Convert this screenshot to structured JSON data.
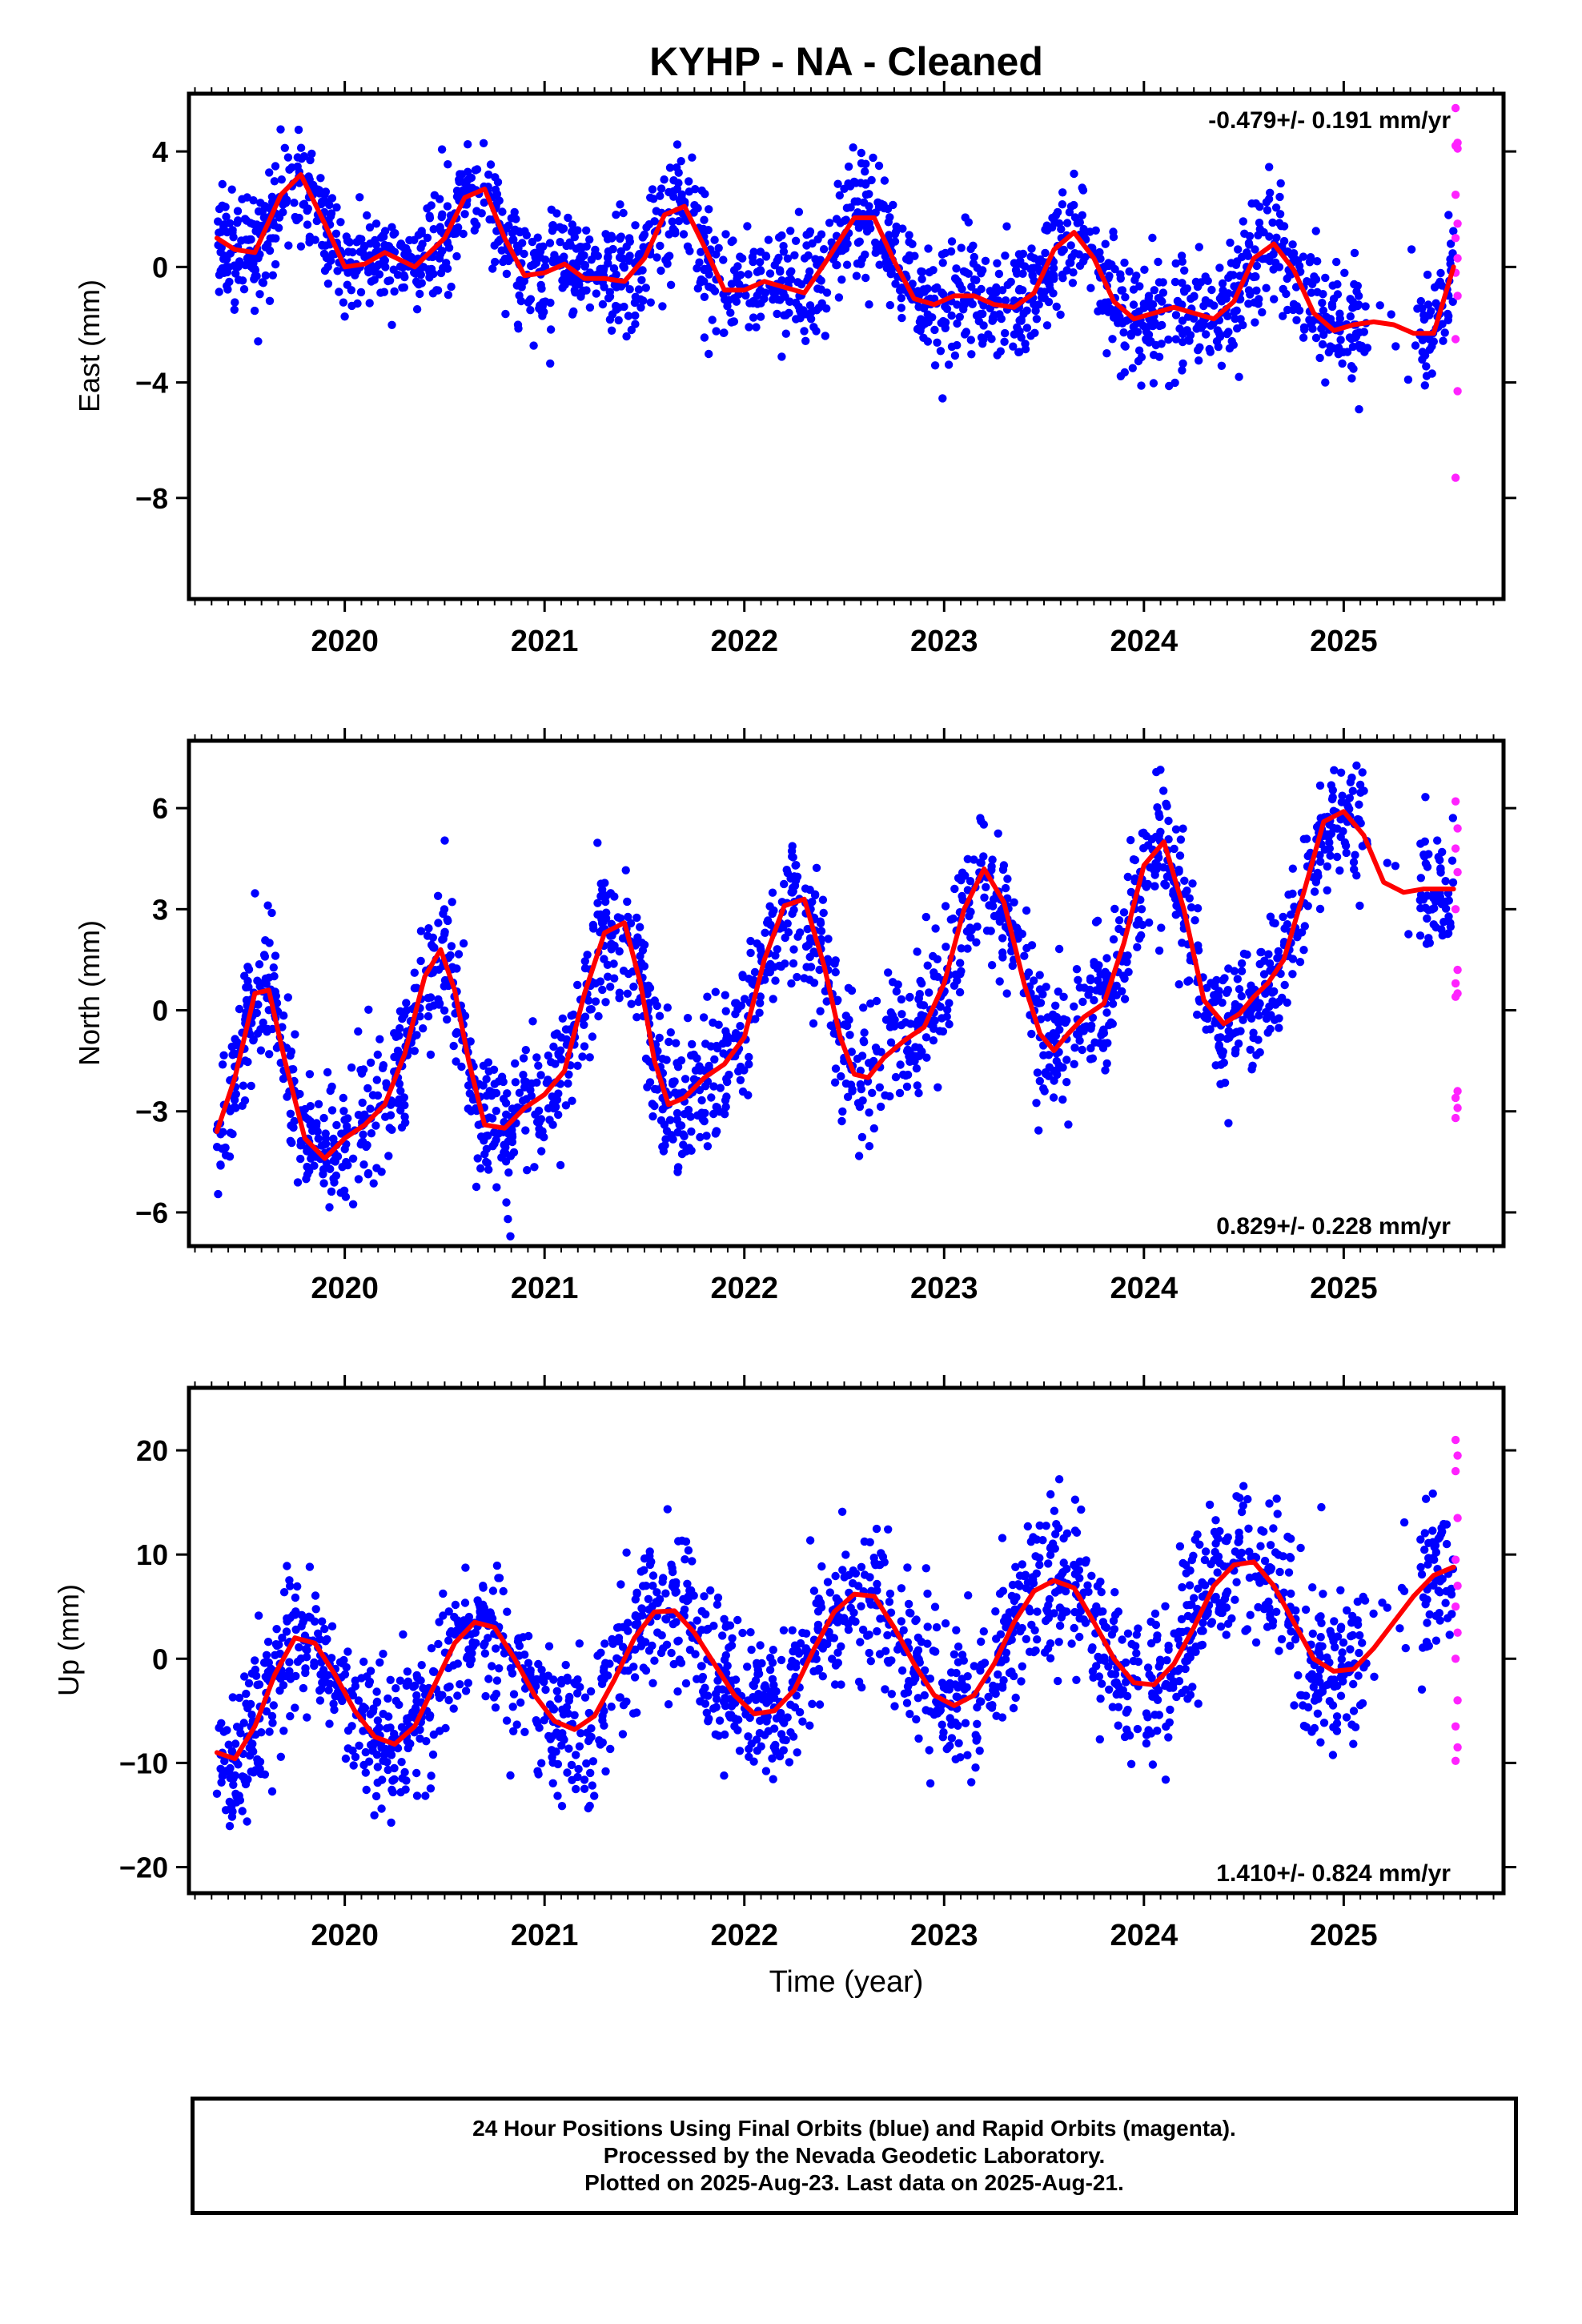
{
  "title": "KYHP  - NA - Cleaned",
  "xlabel": "Time (year)",
  "footer": {
    "line1": "24 Hour Positions Using Final Orbits (blue) and Rapid Orbits (magenta).",
    "line2": "Processed by the Nevada Geodetic Laboratory.",
    "line3": "Plotted on 2025-Aug-23. Last data on 2025-Aug-21."
  },
  "colors": {
    "final": "#0000ff",
    "rapid": "#ff22ff",
    "model": "#ff0000"
  },
  "chart_data": [
    {
      "type": "scatter",
      "ylabel": "East (mm)",
      "rate_text": "-0.479+/- 0.191 mm/yr",
      "rate_position": "top-right",
      "xlim": [
        2019.22,
        2025.8
      ],
      "ylim": [
        -11.5,
        6
      ],
      "xticks": [
        2020,
        2021,
        2022,
        2023,
        2024,
        2025
      ],
      "xtick_labels": [
        "2020",
        "2021",
        "2022",
        "2023",
        "2024",
        "2025"
      ],
      "yticks": [
        4,
        0,
        -4,
        -8
      ],
      "ytick_labels": [
        "4",
        "0",
        "−4",
        "−8"
      ],
      "data_start": 2019.36,
      "data_end": 2025.55,
      "series": [
        {
          "kind": "model",
          "x": [
            2019.36,
            2019.45,
            2019.55,
            2019.68,
            2019.78,
            2019.9,
            2020.0,
            2020.1,
            2020.2,
            2020.35,
            2020.5,
            2020.6,
            2020.7,
            2020.8,
            2020.9,
            2021.0,
            2021.1,
            2021.2,
            2021.3,
            2021.4,
            2021.5,
            2021.6,
            2021.7,
            2021.8,
            2021.9,
            2022.0,
            2022.1,
            2022.2,
            2022.3,
            2022.4,
            2022.55,
            2022.65,
            2022.75,
            2022.85,
            2022.95,
            2023.05,
            2023.15,
            2023.25,
            2023.35,
            2023.45,
            2023.55,
            2023.65,
            2023.75,
            2023.85,
            2023.95,
            2024.05,
            2024.15,
            2024.25,
            2024.35,
            2024.45,
            2024.55,
            2024.65,
            2024.75,
            2024.85,
            2024.95,
            2025.05,
            2025.15,
            2025.25,
            2025.35,
            2025.45,
            2025.55
          ],
          "y": [
            1.0,
            0.6,
            0.5,
            2.5,
            3.2,
            1.5,
            0.0,
            0.1,
            0.5,
            0.0,
            1.0,
            2.4,
            2.7,
            1.0,
            -0.3,
            -0.2,
            0.1,
            -0.4,
            -0.4,
            -0.5,
            0.3,
            1.8,
            2.1,
            0.7,
            -0.8,
            -0.8,
            -0.5,
            -0.7,
            -0.9,
            0.1,
            1.7,
            1.7,
            0.2,
            -1.1,
            -1.3,
            -1.0,
            -1.0,
            -1.3,
            -1.4,
            -0.9,
            0.6,
            1.2,
            0.3,
            -1.2,
            -1.8,
            -1.6,
            -1.4,
            -1.6,
            -1.8,
            -1.2,
            0.3,
            0.8,
            -0.1,
            -1.6,
            -2.2,
            -2.0,
            -1.9,
            -2.0,
            -2.3,
            -2.3,
            0.0
          ]
        },
        {
          "kind": "rapid",
          "x": [
            2025.56,
            2025.57,
            2025.56,
            2025.57,
            2025.56,
            2025.57,
            2025.56,
            2025.57,
            2025.56,
            2025.57,
            2025.56,
            2025.57,
            2025.56
          ],
          "y": [
            5.5,
            4.3,
            4.2,
            4.1,
            2.5,
            1.5,
            1.0,
            0.3,
            -0.2,
            -1.0,
            -2.5,
            -4.3,
            -7.3
          ]
        }
      ]
    },
    {
      "type": "scatter",
      "ylabel": "North (mm)",
      "rate_text": "0.829+/- 0.228 mm/yr",
      "rate_position": "bottom-right",
      "xlim": [
        2019.22,
        2025.8
      ],
      "ylim": [
        -7,
        8
      ],
      "xticks": [
        2020,
        2021,
        2022,
        2023,
        2024,
        2025
      ],
      "xtick_labels": [
        "2020",
        "2021",
        "2022",
        "2023",
        "2024",
        "2025"
      ],
      "yticks": [
        6,
        3,
        0,
        -3,
        -6
      ],
      "ytick_labels": [
        "6",
        "3",
        "0",
        "−3",
        "−6"
      ],
      "data_start": 2019.36,
      "data_end": 2025.55,
      "series": [
        {
          "kind": "model",
          "x": [
            2019.36,
            2019.45,
            2019.55,
            2019.62,
            2019.7,
            2019.8,
            2019.9,
            2020.0,
            2020.1,
            2020.2,
            2020.3,
            2020.4,
            2020.48,
            2020.55,
            2020.62,
            2020.7,
            2020.8,
            2020.9,
            2021.0,
            2021.1,
            2021.2,
            2021.3,
            2021.4,
            2021.48,
            2021.55,
            2021.62,
            2021.7,
            2021.8,
            2021.9,
            2022.0,
            2022.1,
            2022.2,
            2022.3,
            2022.4,
            2022.48,
            2022.55,
            2022.62,
            2022.7,
            2022.8,
            2022.9,
            2023.0,
            2023.1,
            2023.2,
            2023.3,
            2023.4,
            2023.48,
            2023.55,
            2023.62,
            2023.7,
            2023.8,
            2023.9,
            2024.0,
            2024.1,
            2024.2,
            2024.3,
            2024.4,
            2024.48,
            2024.55,
            2024.62,
            2024.7,
            2024.8,
            2024.9,
            2025.0,
            2025.1,
            2025.2,
            2025.3,
            2025.4,
            2025.48,
            2025.55
          ],
          "y": [
            -3.6,
            -2.0,
            0.5,
            0.6,
            -1.5,
            -3.8,
            -4.4,
            -3.8,
            -3.4,
            -2.8,
            -1.3,
            1.0,
            1.8,
            0.6,
            -1.5,
            -3.4,
            -3.5,
            -2.9,
            -2.5,
            -1.8,
            0.5,
            2.3,
            2.6,
            0.8,
            -1.5,
            -2.8,
            -2.6,
            -2.0,
            -1.6,
            -0.8,
            1.5,
            3.1,
            3.3,
            1.3,
            -0.8,
            -1.9,
            -2.0,
            -1.4,
            -0.9,
            -0.5,
            0.8,
            3.0,
            4.2,
            3.2,
            0.8,
            -0.7,
            -1.2,
            -0.7,
            -0.2,
            0.2,
            2.0,
            4.3,
            5.0,
            3.0,
            0.3,
            -0.4,
            -0.1,
            0.4,
            0.8,
            1.5,
            3.5,
            5.6,
            5.9,
            5.2,
            3.8,
            3.5,
            3.6,
            3.6,
            3.6
          ]
        },
        {
          "kind": "rapid",
          "x": [
            2025.56,
            2025.57,
            2025.56,
            2025.57,
            2025.56,
            2025.57,
            2025.56,
            2025.57,
            2025.56,
            2025.57,
            2025.56,
            2025.57,
            2025.56
          ],
          "y": [
            6.2,
            5.4,
            4.8,
            4.1,
            3.0,
            1.2,
            0.8,
            0.5,
            0.4,
            -2.4,
            -2.6,
            -2.9,
            -3.2
          ]
        }
      ]
    },
    {
      "type": "scatter",
      "ylabel": "Up (mm)",
      "rate_text": "1.410+/- 0.824 mm/yr",
      "rate_position": "bottom-right",
      "xlim": [
        2019.22,
        2025.8
      ],
      "ylim": [
        -22.5,
        26
      ],
      "xticks": [
        2020,
        2021,
        2022,
        2023,
        2024,
        2025
      ],
      "xtick_labels": [
        "2020",
        "2021",
        "2022",
        "2023",
        "2024",
        "2025"
      ],
      "yticks": [
        20,
        10,
        0,
        -10,
        -20
      ],
      "ytick_labels": [
        "20",
        "10",
        "0",
        "−10",
        "−20"
      ],
      "data_start": 2019.36,
      "data_end": 2025.55,
      "series": [
        {
          "kind": "model",
          "x": [
            2019.36,
            2019.45,
            2019.55,
            2019.65,
            2019.75,
            2019.85,
            2019.95,
            2020.05,
            2020.15,
            2020.25,
            2020.35,
            2020.45,
            2020.55,
            2020.65,
            2020.75,
            2020.85,
            2020.95,
            2021.05,
            2021.15,
            2021.25,
            2021.35,
            2021.45,
            2021.55,
            2021.65,
            2021.75,
            2021.85,
            2021.95,
            2022.05,
            2022.15,
            2022.25,
            2022.35,
            2022.45,
            2022.55,
            2022.65,
            2022.75,
            2022.85,
            2022.95,
            2023.05,
            2023.15,
            2023.25,
            2023.35,
            2023.45,
            2023.55,
            2023.65,
            2023.75,
            2023.85,
            2023.95,
            2024.05,
            2024.15,
            2024.25,
            2024.35,
            2024.45,
            2024.55,
            2024.65,
            2024.75,
            2024.85,
            2024.95,
            2025.05,
            2025.15,
            2025.25,
            2025.35,
            2025.45,
            2025.55
          ],
          "y": [
            -9.0,
            -9.6,
            -6.5,
            -1.5,
            2.0,
            1.5,
            -1.5,
            -5.0,
            -7.5,
            -8.2,
            -6.5,
            -2.5,
            1.5,
            3.5,
            3.0,
            0.0,
            -3.5,
            -6.0,
            -6.8,
            -5.5,
            -2.0,
            2.0,
            4.5,
            4.6,
            2.5,
            -0.5,
            -3.5,
            -5.3,
            -5.0,
            -3.0,
            1.0,
            4.5,
            6.2,
            6.0,
            3.0,
            -0.5,
            -3.5,
            -4.5,
            -3.5,
            -0.5,
            3.5,
            6.5,
            7.5,
            6.8,
            3.5,
            0.0,
            -2.3,
            -2.5,
            -0.5,
            3.0,
            7.0,
            9.0,
            9.3,
            7.0,
            3.5,
            0.0,
            -1.2,
            -1.0,
            1.0,
            3.5,
            6.0,
            8.0,
            8.8
          ]
        },
        {
          "kind": "rapid",
          "x": [
            2025.56,
            2025.57,
            2025.56,
            2025.57,
            2025.56,
            2025.57,
            2025.56,
            2025.57,
            2025.56,
            2025.57,
            2025.56,
            2025.57,
            2025.56
          ],
          "y": [
            21.0,
            19.5,
            18.0,
            13.5,
            9.5,
            7.0,
            5.0,
            2.5,
            0.0,
            -4.0,
            -6.5,
            -8.5,
            -9.8
          ]
        }
      ]
    }
  ]
}
